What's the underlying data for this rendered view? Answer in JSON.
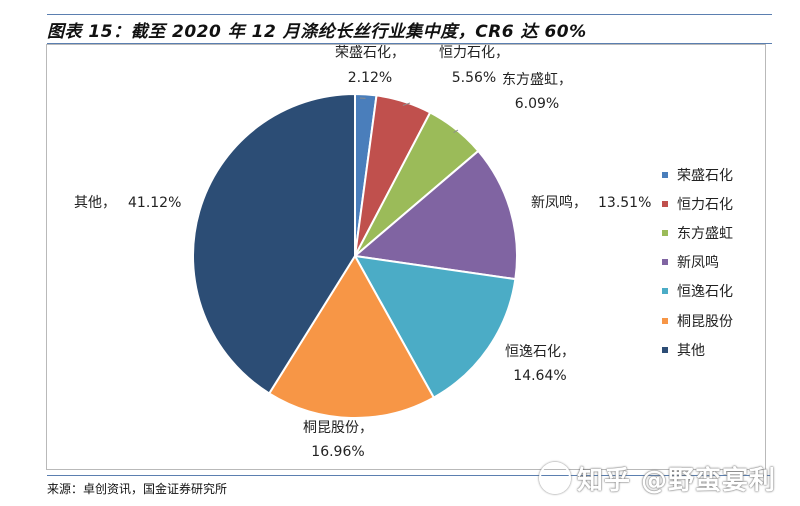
{
  "header": {
    "title": "图表 15：截至 2020 年 12 月涤纶长丝行业集中度，CR6 达 60%"
  },
  "chart_data": {
    "type": "pie",
    "title": "图表 15：截至 2020 年 12 月涤纶长丝行业集中度，CR6 达 60%",
    "slices": [
      {
        "name": "荣盛石化",
        "value": 2.12,
        "label": "2.12%",
        "color": "#4a7ebb"
      },
      {
        "name": "恒力石化",
        "value": 5.56,
        "label": "5.56%",
        "color": "#c0504d"
      },
      {
        "name": "东方盛虹",
        "value": 6.09,
        "label": "6.09%",
        "color": "#9bbb59"
      },
      {
        "name": "新凤鸣",
        "value": 13.51,
        "label": "13.51%",
        "color": "#8064a2"
      },
      {
        "name": "恒逸石化",
        "value": 14.64,
        "label": "14.64%",
        "color": "#4bacc6"
      },
      {
        "name": "桐昆股份",
        "value": 16.96,
        "label": "16.96%",
        "color": "#f79646"
      },
      {
        "name": "其他",
        "value": 41.12,
        "label": "41.12%",
        "color": "#2c4d75"
      }
    ],
    "legend_position": "right"
  },
  "footer": {
    "source": "来源：卓创资讯，国金证券研究所",
    "watermark": "知乎 @野蛮宴利"
  }
}
